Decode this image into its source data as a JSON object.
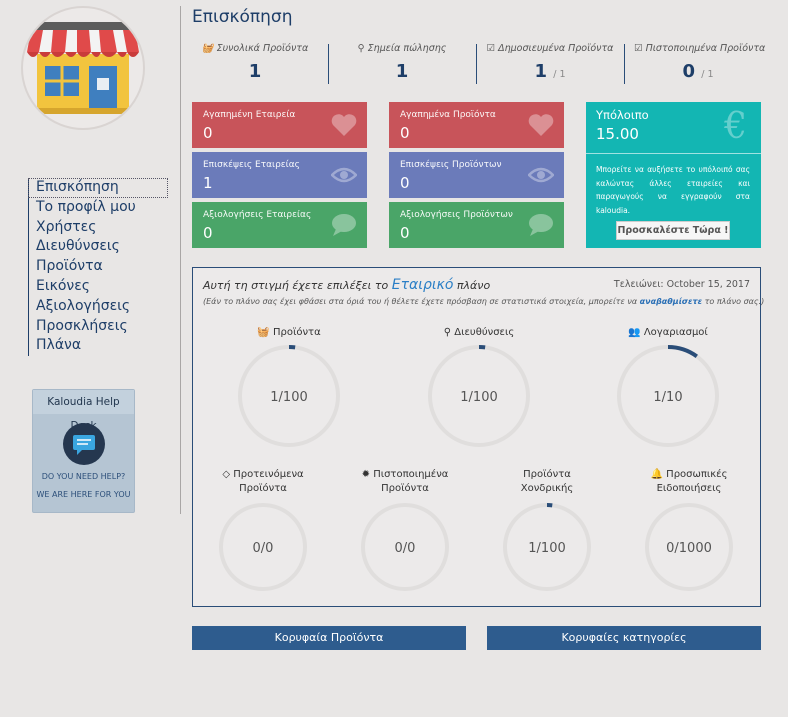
{
  "colors": {
    "accent": "#1e3e68",
    "red": "#c8545a",
    "blue": "#6b7bba",
    "green": "#4aa568",
    "teal": "#13b6b3",
    "button": "#2e5c8e"
  },
  "sidebar": {
    "items": [
      {
        "label": "Επισκόπηση",
        "active": true
      },
      {
        "label": "Το προφίλ μου"
      },
      {
        "label": "Χρήστες"
      },
      {
        "label": "Διευθύνσεις"
      },
      {
        "label": "Προϊόντα"
      },
      {
        "label": "Εικόνες"
      },
      {
        "label": "Αξιολογήσεις"
      },
      {
        "label": "Προσκλήσεις"
      },
      {
        "label": "Πλάνα"
      }
    ],
    "helpdesk": {
      "title": "Kaloudia Help Desk",
      "line1": "DO YOU NEED HELP?",
      "line2": "WE ARE HERE FOR YOU"
    }
  },
  "header": {
    "title": "Επισκόπηση"
  },
  "stats": [
    {
      "icon": "basket-icon",
      "label": "Συνολικά Προϊόντα",
      "value": "1",
      "suffix": ""
    },
    {
      "icon": "map-marker-icon",
      "label": "Σημεία πώλησης",
      "value": "1",
      "suffix": ""
    },
    {
      "icon": "check-square-icon",
      "label": "Δημοσιευμένα Προϊόντα",
      "value": "1",
      "suffix": "/ 1"
    },
    {
      "icon": "check-square-icon",
      "label": "Πιστοποιημένα Προϊόντα",
      "value": "0",
      "suffix": "/ 1"
    }
  ],
  "cards": {
    "company_favorites": {
      "label": "Αγαπημένη Εταιρεία",
      "value": "0",
      "icon": "heart-icon"
    },
    "product_favorites": {
      "label": "Αγαπημένα Προϊόντα",
      "value": "0",
      "icon": "heart-icon"
    },
    "company_visits": {
      "label": "Επισκέψεις Εταιρείας",
      "value": "1",
      "icon": "eye-icon"
    },
    "product_visits": {
      "label": "Επισκέψεις Προϊόντων",
      "value": "0",
      "icon": "eye-icon"
    },
    "company_reviews": {
      "label": "Αξιολογήσεις Εταιρείας",
      "value": "0",
      "icon": "comment-icon"
    },
    "product_reviews": {
      "label": "Αξιολογήσεις Προϊόντων",
      "value": "0",
      "icon": "comment-icon"
    }
  },
  "balance": {
    "label": "Υπόλοιπο",
    "value": "15.00",
    "icon": "euro-icon",
    "text": "Μπορείτε να αυξήσετε το υπόλοιπό σας καλώντας άλλες εταιρείες και παραγωγούς να εγγραφούν στα kaloudia.",
    "button": "Προσκαλέστε Τώρα !"
  },
  "plan": {
    "title_prefix": "Αυτή τη στιγμή έχετε επιλέξει το",
    "plan_name": "Εταιρικό",
    "title_suffix": "πλάνο",
    "expiry": "Τελειώνει: October 15, 2017",
    "note_prefix": "(Εάν το πλάνο σας έχει φθάσει στα όριά του ή θέλετε έχετε πρόσβαση σε στατιστικά στοιχεία, μπορείτε να",
    "note_link": "αναβαθμίσετε",
    "note_suffix": "το πλάνο σας.)",
    "gauges": [
      {
        "icon": "basket-icon",
        "label": "Προϊόντα",
        "label2": "",
        "text": "1/100",
        "used": 1,
        "max": 100
      },
      {
        "icon": "map-marker-icon",
        "label": "Διευθύνσεις",
        "label2": "",
        "text": "1/100",
        "used": 1,
        "max": 100
      },
      {
        "icon": "users-icon",
        "label": "Λογαριασμοί",
        "label2": "",
        "text": "1/10",
        "used": 1,
        "max": 10
      },
      {
        "icon": "diamond-icon",
        "label": "Προτεινόμενα",
        "label2": "Προϊόντα",
        "text": "0/0",
        "used": 0,
        "max": 0
      },
      {
        "icon": "certificate-icon",
        "label": "Πιστοποιημένα",
        "label2": "Προϊόντα",
        "text": "0/0",
        "used": 0,
        "max": 0
      },
      {
        "icon": "",
        "label": "Προϊόντα",
        "label2": "Χονδρικής",
        "text": "1/100",
        "used": 1,
        "max": 100
      },
      {
        "icon": "bell-icon",
        "label": "Προσωπικές",
        "label2": "Ειδοποιήσεις",
        "text": "0/1000",
        "used": 0,
        "max": 1000
      }
    ]
  },
  "buttons": {
    "top_products": "Κορυφαία Προϊόντα",
    "top_categories": "Κορυφαίες κατηγορίες"
  }
}
